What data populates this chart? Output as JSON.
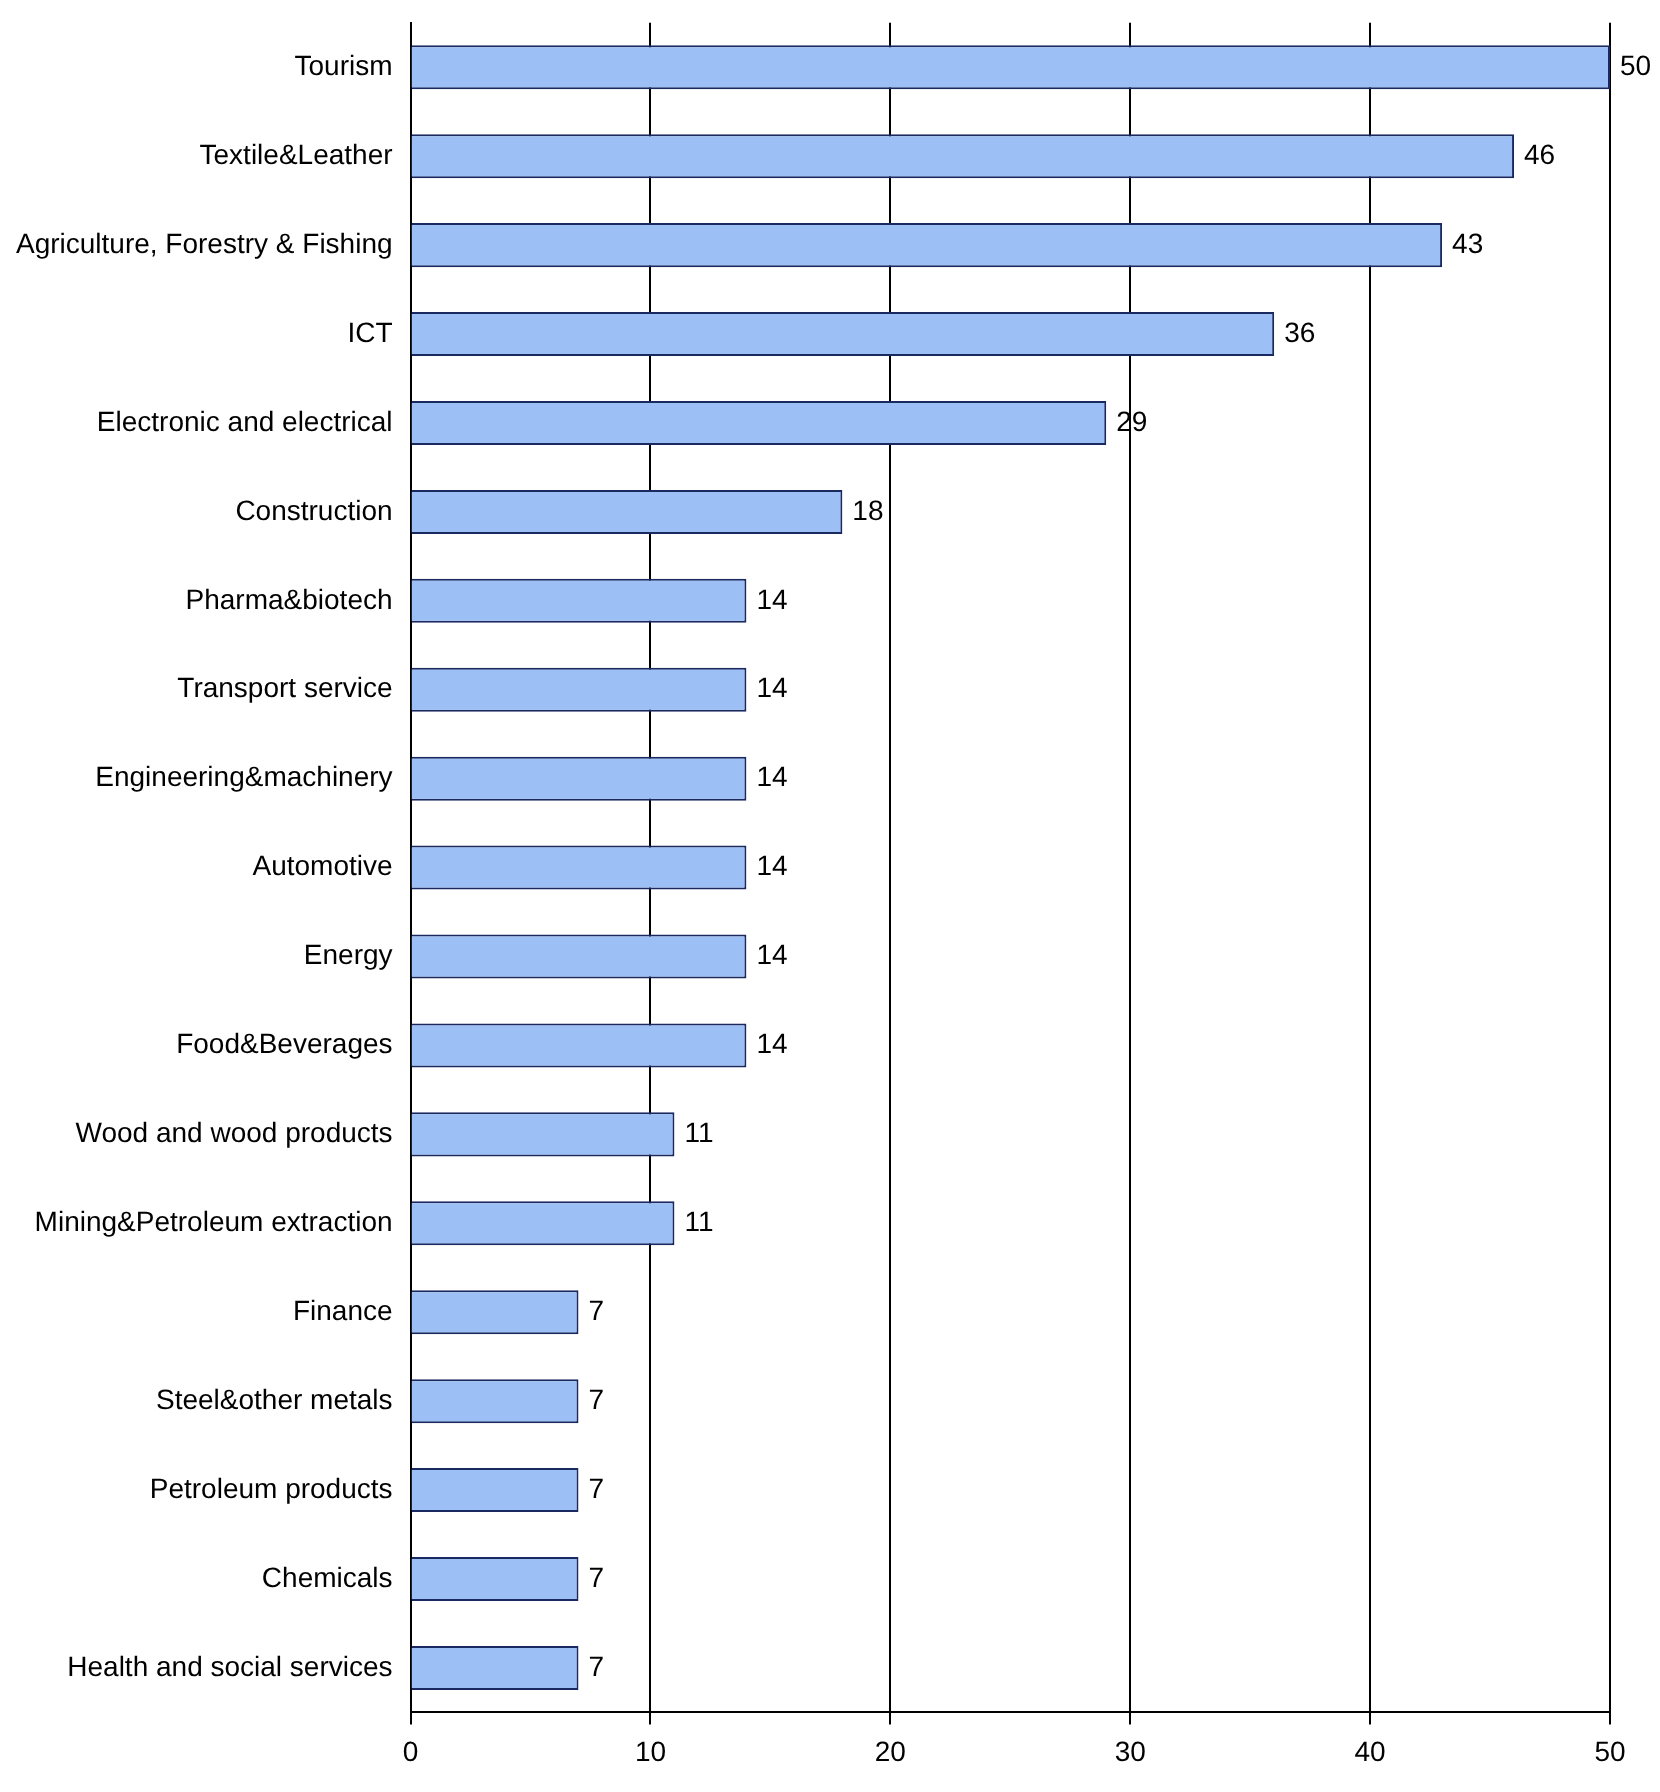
{
  "chart_data": {
    "type": "bar",
    "orientation": "horizontal",
    "categories": [
      "Tourism",
      "Textile&Leather",
      "Agriculture, Forestry & Fishing",
      "ICT",
      "Electronic and electrical",
      "Construction",
      "Pharma&biotech",
      "Transport service",
      "Engineering&machinery",
      "Automotive",
      "Energy",
      "Food&Beverages",
      "Wood and wood products",
      "Mining&Petroleum extraction",
      "Finance",
      "Steel&other metals",
      "Petroleum products",
      "Chemicals",
      "Health and social services"
    ],
    "values": [
      50,
      46,
      43,
      36,
      29,
      18,
      14,
      14,
      14,
      14,
      14,
      14,
      11,
      11,
      7,
      7,
      7,
      7,
      7
    ],
    "color": "#9cc0f5",
    "xlim": [
      0,
      50
    ],
    "xticks": [
      0,
      10,
      20,
      30,
      40,
      50
    ],
    "grid": "x",
    "legend": false,
    "data_labels": true
  }
}
